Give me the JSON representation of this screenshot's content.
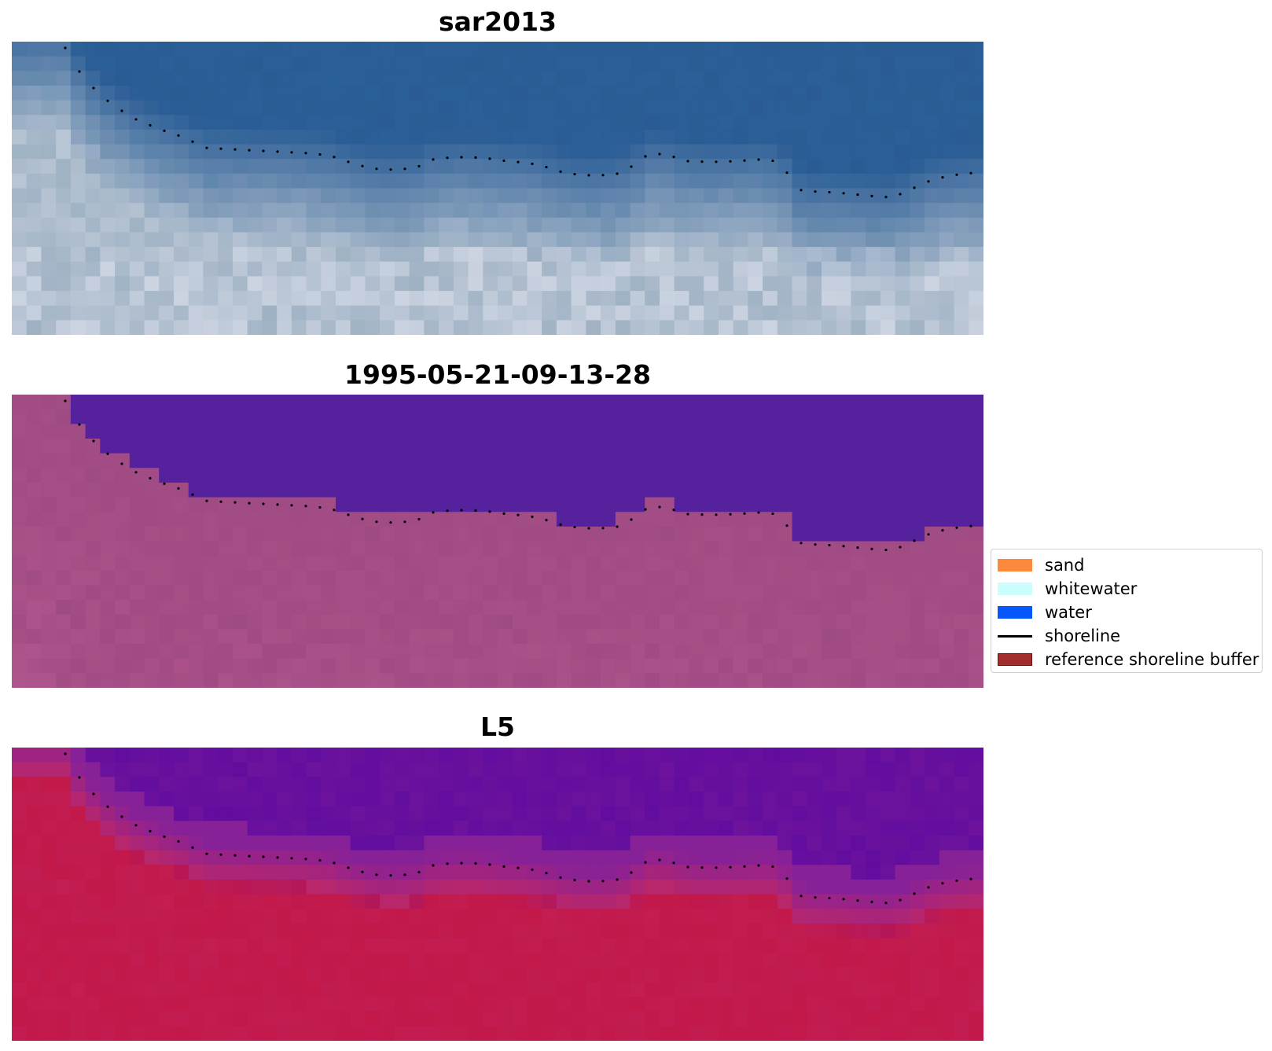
{
  "panels": [
    {
      "title": "sar2013",
      "style": "rgb"
    },
    {
      "title": "1995-05-21-09-13-28",
      "style": "classified"
    },
    {
      "title": "L5",
      "style": "index"
    }
  ],
  "legend": {
    "items": [
      {
        "label": "sand",
        "color": "#fd8a3c",
        "kind": "patch"
      },
      {
        "label": "whitewater",
        "color": "#ccfdfd",
        "kind": "patch"
      },
      {
        "label": "water",
        "color": "#0657fb",
        "kind": "patch"
      },
      {
        "label": "shoreline",
        "color": "#000000",
        "kind": "line"
      },
      {
        "label": "reference shoreline buffer",
        "color": "#a22d2d",
        "kind": "patch"
      }
    ]
  },
  "colors": {
    "water_class": "#55219c",
    "rgb_water": "#2b5f97",
    "rgb_land": "#9fb2c4",
    "land_class": "#9a4780",
    "index_water": "#620d9f",
    "index_land": "#c2184a"
  }
}
